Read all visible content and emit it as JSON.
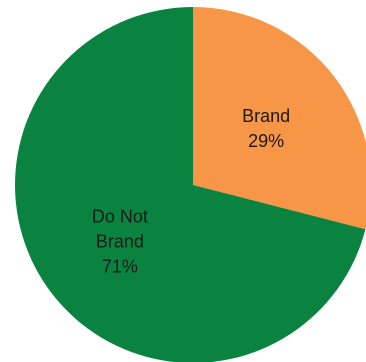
{
  "chart_data": {
    "type": "pie",
    "title": "",
    "slices": [
      {
        "label": [
          "Brand"
        ],
        "value": 29,
        "value_label": "29%",
        "color": "#F79646"
      },
      {
        "label": [
          "Do Not",
          "Brand"
        ],
        "value": 71,
        "value_label": "71%",
        "color": "#0A8341"
      }
    ],
    "start_angle_deg": 0,
    "direction": "clockwise",
    "legend": "none"
  }
}
